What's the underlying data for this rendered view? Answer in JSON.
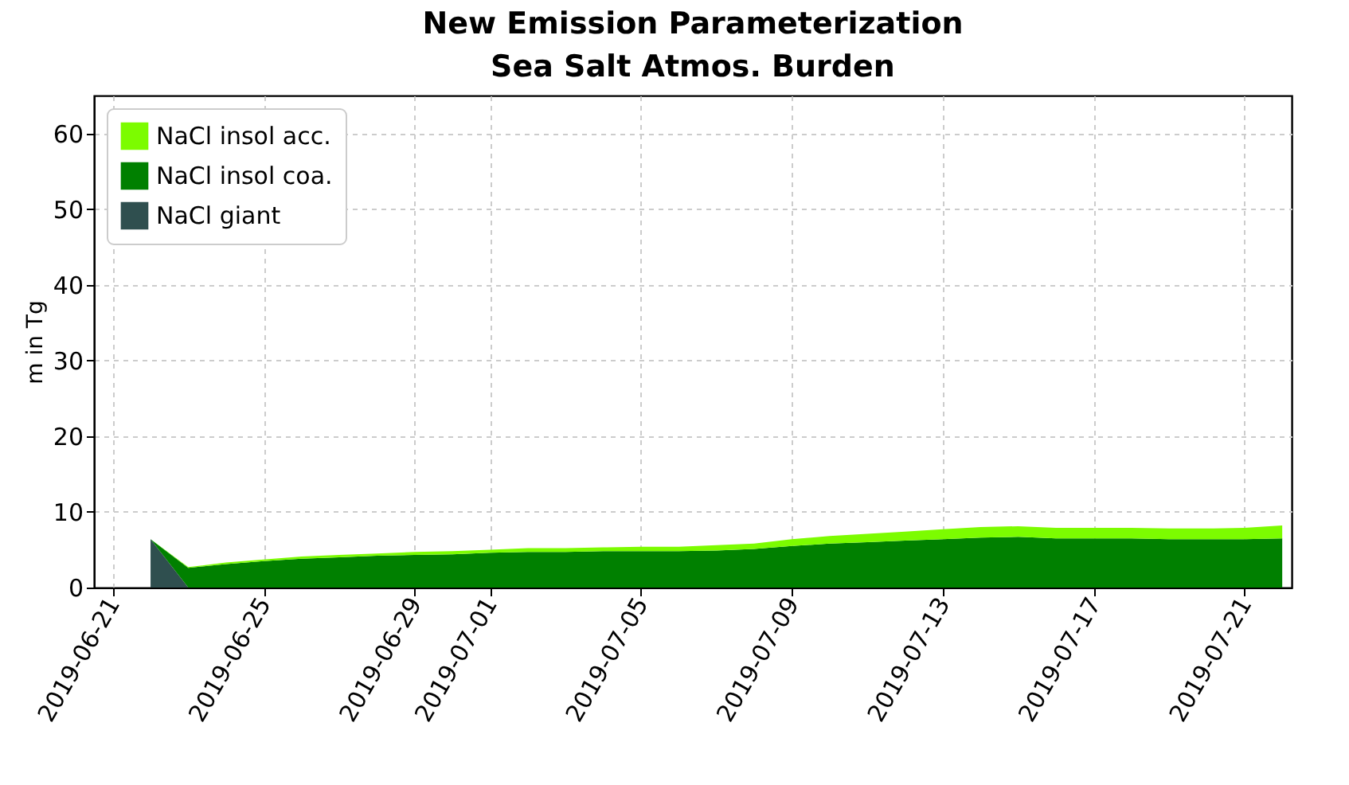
{
  "chart_data": {
    "type": "area",
    "title": "New Emission Parameterization",
    "subtitle": "Sea Salt Atmos. Burden",
    "ylabel": "m in Tg",
    "stacked": true,
    "x": [
      "2019-06-22",
      "2019-06-23",
      "2019-06-24",
      "2019-06-25",
      "2019-06-26",
      "2019-06-27",
      "2019-06-28",
      "2019-06-29",
      "2019-06-30",
      "2019-07-01",
      "2019-07-02",
      "2019-07-03",
      "2019-07-04",
      "2019-07-05",
      "2019-07-06",
      "2019-07-07",
      "2019-07-08",
      "2019-07-09",
      "2019-07-10",
      "2019-07-11",
      "2019-07-12",
      "2019-07-13",
      "2019-07-14",
      "2019-07-15",
      "2019-07-16",
      "2019-07-17",
      "2019-07-18",
      "2019-07-19",
      "2019-07-20",
      "2019-07-21",
      "2019-07-22"
    ],
    "series": [
      {
        "name": "NaCl giant",
        "color": "#2f4f4f",
        "values": [
          6.4,
          0,
          0,
          0,
          0,
          0,
          0,
          0,
          0,
          0,
          0,
          0,
          0,
          0,
          0,
          0,
          0,
          0,
          0,
          0,
          0,
          0,
          0,
          0,
          0,
          0,
          0,
          0,
          0,
          0,
          0
        ]
      },
      {
        "name": "NaCl insol coa.",
        "color": "#008000",
        "values": [
          0,
          2.6,
          3.1,
          3.5,
          3.8,
          4.0,
          4.2,
          4.3,
          4.4,
          4.6,
          4.7,
          4.7,
          4.8,
          4.8,
          4.8,
          4.9,
          5.1,
          5.5,
          5.8,
          6.0,
          6.2,
          6.4,
          6.6,
          6.7,
          6.5,
          6.5,
          6.5,
          6.4,
          6.4,
          6.4,
          6.5
        ]
      },
      {
        "name": "NaCl insol acc.",
        "color": "#7cfc00",
        "values": [
          0,
          0.1,
          0.2,
          0.2,
          0.3,
          0.3,
          0.3,
          0.4,
          0.4,
          0.4,
          0.5,
          0.5,
          0.5,
          0.6,
          0.6,
          0.7,
          0.7,
          0.9,
          1.0,
          1.1,
          1.2,
          1.3,
          1.4,
          1.4,
          1.4,
          1.4,
          1.4,
          1.4,
          1.4,
          1.5,
          1.7
        ]
      }
    ],
    "xlim": [
      "2019-06-20T12:00",
      "2019-07-22T06:00"
    ],
    "xticks": [
      "2019-06-21",
      "2019-06-25",
      "2019-06-29",
      "2019-07-01",
      "2019-07-05",
      "2019-07-09",
      "2019-07-13",
      "2019-07-17",
      "2019-07-21"
    ],
    "ylim": [
      0,
      65
    ],
    "yticks": [
      0,
      10,
      20,
      30,
      40,
      50,
      60
    ],
    "grid": true,
    "legend": "top left"
  }
}
